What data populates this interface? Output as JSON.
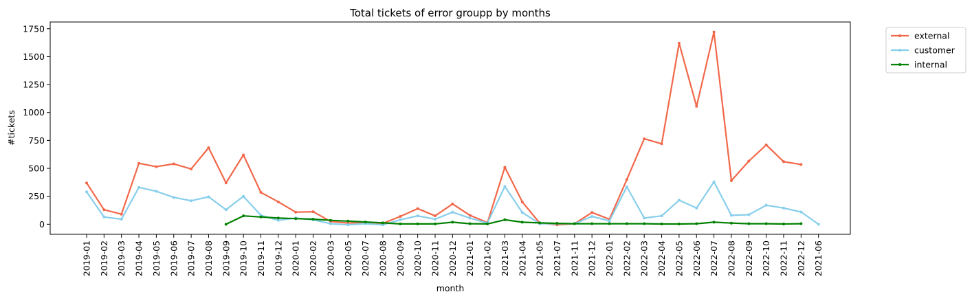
{
  "chart_data": {
    "type": "line",
    "title": "Total tickets of error groupp by months",
    "xlabel": "month",
    "ylabel": "#tickets",
    "ylim": [
      -90,
      1810
    ],
    "yticks": [
      0,
      250,
      500,
      750,
      1000,
      1250,
      1500,
      1750
    ],
    "grid": false,
    "legend_position": "outside-top-right",
    "categories": [
      "2019-01",
      "2019-02",
      "2019-03",
      "2019-04",
      "2019-05",
      "2019-06",
      "2019-07",
      "2019-08",
      "2019-09",
      "2019-10",
      "2019-11",
      "2019-12",
      "2020-01",
      "2020-02",
      "2020-03",
      "2020-05",
      "2020-07",
      "2020-08",
      "2020-09",
      "2020-10",
      "2020-11",
      "2020-12",
      "2021-01",
      "2021-02",
      "2021-03",
      "2021-04",
      "2021-05",
      "2021-07",
      "2021-11",
      "2021-12",
      "2022-01",
      "2022-02",
      "2022-03",
      "2022-04",
      "2022-05",
      "2022-06",
      "2022-07",
      "2022-08",
      "2022-09",
      "2022-10",
      "2022-11",
      "2022-12",
      "2021-06"
    ],
    "series": [
      {
        "name": "external",
        "color": "#f26749",
        "values": [
          370,
          130,
          90,
          545,
          515,
          540,
          495,
          685,
          370,
          620,
          285,
          200,
          108,
          112,
          25,
          10,
          18,
          8,
          70,
          140,
          75,
          182,
          80,
          15,
          510,
          200,
          10,
          -5,
          5,
          105,
          45,
          400,
          765,
          720,
          1620,
          1055,
          1720,
          390,
          565,
          710,
          560,
          535,
          null
        ]
      },
      {
        "name": "customer",
        "color": "#87ceeb",
        "values": [
          290,
          65,
          45,
          330,
          295,
          240,
          210,
          245,
          130,
          250,
          80,
          35,
          55,
          40,
          5,
          -5,
          5,
          -5,
          40,
          75,
          45,
          108,
          55,
          10,
          338,
          105,
          5,
          5,
          5,
          70,
          30,
          335,
          55,
          75,
          215,
          145,
          380,
          80,
          85,
          170,
          145,
          110,
          0
        ]
      },
      {
        "name": "internal",
        "color": "#008000",
        "values": [
          null,
          null,
          null,
          null,
          null,
          null,
          null,
          null,
          0,
          75,
          65,
          55,
          50,
          45,
          35,
          28,
          20,
          12,
          3,
          3,
          3,
          18,
          5,
          3,
          40,
          18,
          12,
          8,
          5,
          5,
          5,
          5,
          5,
          2,
          2,
          5,
          18,
          10,
          5,
          5,
          2,
          5,
          null
        ]
      }
    ]
  }
}
